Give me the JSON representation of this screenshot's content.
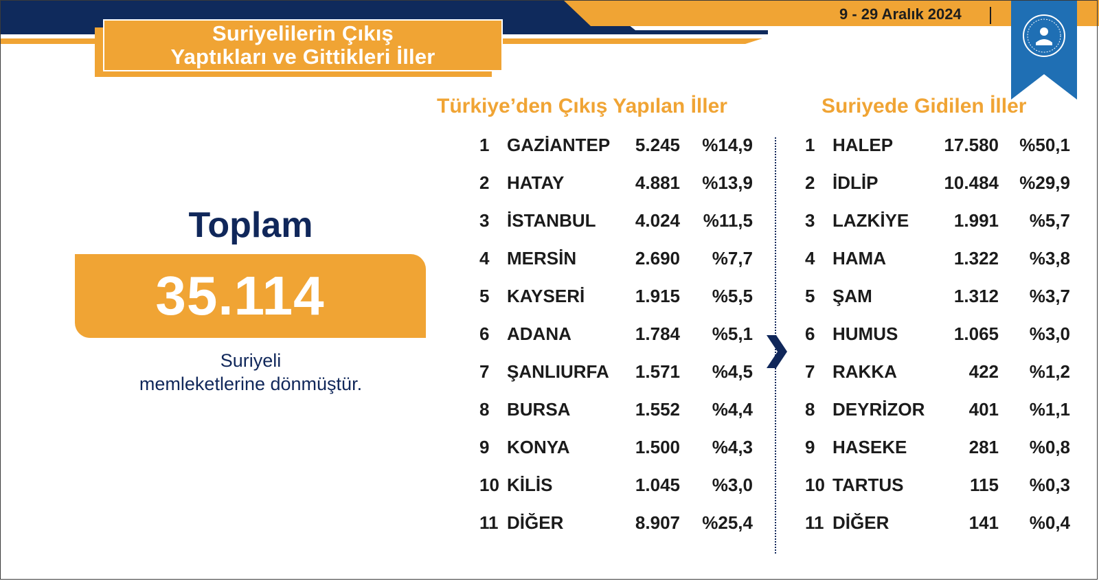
{
  "header": {
    "title_line1": "Suriyelilerin Çıkış",
    "title_line2": "Yaptıkları ve Gittikleri İller",
    "date": "9 - 29 Aralık 2024",
    "logo_icon": "ministry-seal-icon",
    "colors": {
      "orange": "#f0a434",
      "navy": "#0f2a5c",
      "blue_ribbon": "#1f6fb4"
    }
  },
  "summary": {
    "label": "Toplam",
    "value": "35.114",
    "caption_line1": "Suriyeli",
    "caption_line2": "memleketlerine dönmüştür."
  },
  "turkiye": {
    "heading": "Türkiye’den Çıkış Yapılan İller",
    "rows": [
      {
        "rank": "1",
        "name": "GAZİANTEP",
        "count": "5.245",
        "pct": "%14,9"
      },
      {
        "rank": "2",
        "name": "HATAY",
        "count": "4.881",
        "pct": "%13,9"
      },
      {
        "rank": "3",
        "name": "İSTANBUL",
        "count": "4.024",
        "pct": "%11,5"
      },
      {
        "rank": "4",
        "name": "MERSİN",
        "count": "2.690",
        "pct": "%7,7"
      },
      {
        "rank": "5",
        "name": "KAYSERİ",
        "count": "1.915",
        "pct": "%5,5"
      },
      {
        "rank": "6",
        "name": "ADANA",
        "count": "1.784",
        "pct": "%5,1"
      },
      {
        "rank": "7",
        "name": "ŞANLIURFA",
        "count": "1.571",
        "pct": "%4,5"
      },
      {
        "rank": "8",
        "name": "BURSA",
        "count": "1.552",
        "pct": "%4,4"
      },
      {
        "rank": "9",
        "name": "KONYA",
        "count": "1.500",
        "pct": "%4,3"
      },
      {
        "rank": "10",
        "name": "KİLİS",
        "count": "1.045",
        "pct": "%3,0"
      },
      {
        "rank": "11",
        "name": "DİĞER",
        "count": "8.907",
        "pct": "%25,4"
      }
    ]
  },
  "suriye": {
    "heading": "Suriyede Gidilen İller",
    "rows": [
      {
        "rank": "1",
        "name": "HALEP",
        "count": "17.580",
        "pct": "%50,1"
      },
      {
        "rank": "2",
        "name": "İDLİP",
        "count": "10.484",
        "pct": "%29,9"
      },
      {
        "rank": "3",
        "name": "LAZKİYE",
        "count": "1.991",
        "pct": "%5,7"
      },
      {
        "rank": "4",
        "name": "HAMA",
        "count": "1.322",
        "pct": "%3,8"
      },
      {
        "rank": "5",
        "name": "ŞAM",
        "count": "1.312",
        "pct": "%3,7"
      },
      {
        "rank": "6",
        "name": "HUMUS",
        "count": "1.065",
        "pct": "%3,0"
      },
      {
        "rank": "7",
        "name": "RAKKA",
        "count": "422",
        "pct": "%1,2"
      },
      {
        "rank": "8",
        "name": "DEYRİZOR",
        "count": "401",
        "pct": "%1,1"
      },
      {
        "rank": "9",
        "name": "HASEKE",
        "count": "281",
        "pct": "%0,8"
      },
      {
        "rank": "10",
        "name": "TARTUS",
        "count": "115",
        "pct": "%0,3"
      },
      {
        "rank": "11",
        "name": "DİĞER",
        "count": "141",
        "pct": "%0,4"
      }
    ]
  }
}
